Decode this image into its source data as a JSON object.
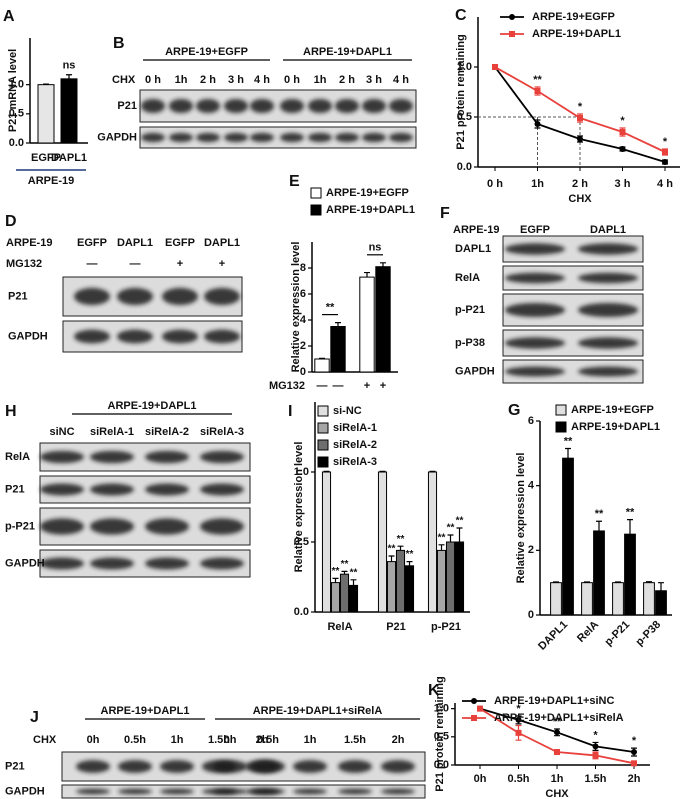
{
  "chart_data": [
    {
      "type": "bar",
      "panel": "A",
      "ylabel": "P21 mRNA level",
      "categories": [
        "EGFP",
        "DAPL1"
      ],
      "group_label": "ARPE-19",
      "values": [
        1.0,
        1.1
      ],
      "errors": [
        0.01,
        0.07
      ],
      "colors": [
        "#e6e6e6",
        "#000000"
      ],
      "significance": [
        null,
        "ns"
      ],
      "ylim": [
        0,
        1.8
      ],
      "yticks": [
        {
          "value": 0,
          "label": "0.0"
        },
        {
          "value": 0.5,
          "label": "0.5"
        },
        {
          "value": 1,
          "label": "1.0"
        }
      ]
    },
    {
      "type": "line",
      "panel": "C",
      "ylabel": "P21 protein remaining",
      "xlabel": "CHX",
      "categories": [
        "0 h",
        "1h",
        "2 h",
        "3 h",
        "4 h"
      ],
      "series": [
        {
          "name": "ARPE-19+EGFP",
          "color": "#000000",
          "values": [
            1.0,
            0.43,
            0.28,
            0.18,
            0.05
          ],
          "errors": [
            0,
            0.04,
            0.03,
            0.02,
            0.02
          ]
        },
        {
          "name": "ARPE-19+DAPL1",
          "color": "#e8413c",
          "values": [
            1.0,
            0.76,
            0.49,
            0.35,
            0.15
          ],
          "errors": [
            0,
            0.04,
            0.04,
            0.04,
            0.03
          ],
          "significance": [
            null,
            "**",
            "*",
            "*",
            "*"
          ]
        }
      ],
      "ylim": [
        0,
        1.5
      ],
      "yticks": [
        {
          "value": 0,
          "label": "0.0"
        },
        {
          "value": 0.5,
          "label": "0.5"
        },
        {
          "value": 1,
          "label": "1.0"
        }
      ]
    },
    {
      "type": "bar",
      "panel": "E",
      "ylabel": "Relative expression level",
      "xlabel": "MG132",
      "categories": [
        "—",
        "+"
      ],
      "group_significance": [
        "**",
        "ns"
      ],
      "series": [
        {
          "name": "ARPE-19+EGFP",
          "color": "#ffffff",
          "values": [
            1.0,
            7.3
          ],
          "errors": [
            0.05,
            0.35
          ]
        },
        {
          "name": "ARPE-19+DAPL1",
          "color": "#000000",
          "values": [
            3.5,
            8.1
          ],
          "errors": [
            0.3,
            0.3
          ]
        }
      ],
      "ylim": [
        0,
        10
      ],
      "yticks": [
        0,
        2,
        4,
        6,
        8
      ]
    },
    {
      "type": "bar",
      "panel": "G",
      "ylabel": "Relative expression level",
      "categories": [
        "DAPL1",
        "RelA",
        "p-P21",
        "p-P38"
      ],
      "series": [
        {
          "name": "ARPE-19+EGFP",
          "color": "#e0e0e0",
          "values": [
            1,
            1,
            1,
            1
          ],
          "errors": [
            0.02,
            0.02,
            0.02,
            0.03
          ]
        },
        {
          "name": "ARPE-19+DAPL1",
          "color": "#000000",
          "values": [
            4.85,
            2.6,
            2.5,
            0.75
          ],
          "errors": [
            0.3,
            0.3,
            0.45,
            0.25
          ],
          "significance": [
            "**",
            "**",
            "**",
            null
          ]
        }
      ],
      "ylim": [
        0,
        6
      ],
      "yticks": [
        0,
        2,
        4,
        6
      ]
    },
    {
      "type": "bar",
      "panel": "I",
      "ylabel": "Relative expression level",
      "categories": [
        "RelA",
        "P21",
        "p-P21"
      ],
      "series": [
        {
          "name": "si-NC",
          "color": "#e0e0e0",
          "values": [
            1,
            1,
            1
          ],
          "errors": [
            0.005,
            0.005,
            0.005
          ]
        },
        {
          "name": "siRelA-1",
          "color": "#a6a6a6",
          "values": [
            0.21,
            0.36,
            0.44
          ],
          "errors": [
            0.03,
            0.04,
            0.04
          ],
          "significance": [
            "**",
            "**",
            "**"
          ]
        },
        {
          "name": "siRelA-2",
          "color": "#6e6e6e",
          "values": [
            0.27,
            0.44,
            0.5
          ],
          "errors": [
            0.02,
            0.03,
            0.05
          ],
          "significance": [
            "**",
            "**",
            "**"
          ]
        },
        {
          "name": "siRelA-3",
          "color": "#000000",
          "values": [
            0.19,
            0.33,
            0.5
          ],
          "errors": [
            0.04,
            0.03,
            0.1
          ],
          "significance": [
            "**",
            "**",
            "**"
          ]
        }
      ],
      "ylim": [
        0,
        1.5
      ],
      "yticks": [
        {
          "value": 0,
          "label": "0.0"
        },
        {
          "value": 0.5,
          "label": "0.5"
        },
        {
          "value": 1,
          "label": "1.0"
        }
      ]
    },
    {
      "type": "line",
      "panel": "K",
      "ylabel": "P21 protein remaining",
      "xlabel": "CHX",
      "categories": [
        "0h",
        "0.5h",
        "1h",
        "1.5h",
        "2h"
      ],
      "series": [
        {
          "name": "ARPE-19+DAPL1+siNC",
          "color": "#000000",
          "values": [
            1.0,
            0.8,
            0.58,
            0.33,
            0.23
          ],
          "errors": [
            0,
            0.07,
            0.06,
            0.07,
            0.07
          ],
          "significance": [
            null,
            "*",
            "**",
            "*",
            "*"
          ]
        },
        {
          "name": "ARPE-19+DAPL1+siRelA",
          "color": "#e8413c",
          "values": [
            1.0,
            0.57,
            0.23,
            0.17,
            0.03
          ],
          "errors": [
            0,
            0.13,
            0.04,
            0.06,
            0.02
          ]
        }
      ],
      "ylim": [
        0,
        1.1
      ],
      "yticks": [
        {
          "value": 0,
          "label": "0.0"
        },
        {
          "value": 0.5,
          "label": "0.5"
        },
        {
          "value": 1,
          "label": "1.0"
        }
      ]
    }
  ],
  "blots": [
    {
      "panel": "B",
      "groups": [
        "ARPE-19+EGFP",
        "ARPE-19+DAPL1"
      ],
      "conditions": [
        {
          "name": "CHX",
          "lanes": [
            "0 h",
            "1h",
            "2 h",
            "3 h",
            "4 h",
            "0 h",
            "1h",
            "2 h",
            "3 h",
            "4 h"
          ]
        }
      ],
      "rows": [
        "P21",
        "GAPDH"
      ]
    },
    {
      "panel": "D",
      "conditions": [
        {
          "name": "ARPE-19",
          "lanes": [
            "EGFP",
            "DAPL1",
            "EGFP",
            "DAPL1"
          ]
        },
        {
          "name": "MG132",
          "lanes": [
            "—",
            "—",
            "+",
            "+"
          ]
        }
      ],
      "rows": [
        "P21",
        "GAPDH"
      ]
    },
    {
      "panel": "F",
      "conditions": [
        {
          "name": "ARPE-19",
          "lanes": [
            "EGFP",
            "DAPL1"
          ]
        }
      ],
      "rows": [
        "DAPL1",
        "RelA",
        "p-P21",
        "p-P38",
        "GAPDH"
      ]
    },
    {
      "panel": "H",
      "groups": [
        "ARPE-19+DAPL1"
      ],
      "conditions": [
        {
          "lanes": [
            "siNC",
            "siRelA-1",
            "siRelA-2",
            "siRelA-3"
          ]
        }
      ],
      "rows": [
        "RelA",
        "P21",
        "p-P21",
        "GAPDH"
      ]
    },
    {
      "panel": "J",
      "groups": [
        "ARPE-19+DAPL1",
        "ARPE-19+DAPL1+siRelA"
      ],
      "conditions": [
        {
          "name": "CHX",
          "lanes": [
            "0h",
            "0.5h",
            "1h",
            "1.5h",
            "2h",
            "0h",
            "0.5h",
            "1h",
            "1.5h",
            "2h"
          ]
        }
      ],
      "rows": [
        "P21",
        "GAPDH"
      ]
    }
  ]
}
